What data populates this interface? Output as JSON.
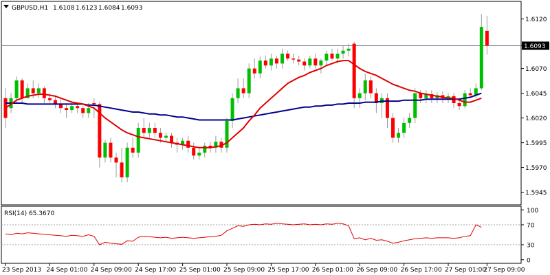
{
  "header": {
    "symbol": "GBPUSD,H1",
    "open": "1.6108",
    "high": "1.6123",
    "low": "1.6084",
    "close": "1.6093"
  },
  "colors": {
    "bull": "#00bf00",
    "bear": "#ff0000",
    "wick": "#9a9a9a",
    "ma_fast": "#e00000",
    "ma_slow": "#00008b",
    "rsi_line": "#e00000",
    "price_line": "#6e7e8e",
    "grid": "#a0a0a0",
    "label_bg": "#000000",
    "label_text": "#ffffff"
  },
  "chart_data": [
    {
      "type": "candlestick",
      "title": "GBPUSD,H1  1.6108 1.6123 1.6084 1.6093",
      "price_axis_ticks": [
        "1.6120",
        "1.6093",
        "1.6070",
        "1.6045",
        "1.6020",
        "1.5995",
        "1.5970",
        "1.5945"
      ],
      "ylim": [
        1.5935,
        1.6135
      ],
      "current_price": "1.6093",
      "x_labels": [
        {
          "i": 0,
          "text": "23 Sep 2013"
        },
        {
          "i": 8,
          "text": "24 Sep 01:00"
        },
        {
          "i": 16,
          "text": "24 Sep 09:00"
        },
        {
          "i": 24,
          "text": "24 Sep 17:00"
        },
        {
          "i": 32,
          "text": "25 Sep 01:00"
        },
        {
          "i": 40,
          "text": "25 Sep 09:00"
        },
        {
          "i": 48,
          "text": "25 Sep 17:00"
        },
        {
          "i": 56,
          "text": "26 Sep 01:00"
        },
        {
          "i": 64,
          "text": "26 Sep 09:00"
        },
        {
          "i": 72,
          "text": "26 Sep 17:00"
        },
        {
          "i": 80,
          "text": "27 Sep 01:00"
        },
        {
          "i": 87,
          "text": "27 Sep 09:00"
        }
      ],
      "candles": [
        [
          1.604,
          1.605,
          1.601,
          1.602
        ],
        [
          1.603,
          1.6045,
          1.6025,
          1.604
        ],
        [
          1.604,
          1.6062,
          1.6035,
          1.6058
        ],
        [
          1.6058,
          1.606,
          1.6035,
          1.604
        ],
        [
          1.604,
          1.6055,
          1.604,
          1.605
        ],
        [
          1.605,
          1.6058,
          1.604,
          1.6045
        ],
        [
          1.6045,
          1.6055,
          1.604,
          1.605
        ],
        [
          1.605,
          1.6052,
          1.6035,
          1.604
        ],
        [
          1.604,
          1.6045,
          1.6035,
          1.6038
        ],
        [
          1.6038,
          1.6042,
          1.603,
          1.6034
        ],
        [
          1.6034,
          1.604,
          1.6025,
          1.603
        ],
        [
          1.603,
          1.6035,
          1.602,
          1.6028
        ],
        [
          1.6028,
          1.6035,
          1.6025,
          1.6032
        ],
        [
          1.6032,
          1.6036,
          1.6025,
          1.603
        ],
        [
          1.603,
          1.6032,
          1.602,
          1.6025
        ],
        [
          1.6025,
          1.6035,
          1.602,
          1.603
        ],
        [
          1.6035,
          1.604,
          1.602,
          1.6034
        ],
        [
          1.6034,
          1.6036,
          1.597,
          1.598
        ],
        [
          1.598,
          1.5998,
          1.5975,
          1.5995
        ],
        [
          1.5995,
          1.6,
          1.5975,
          1.598
        ],
        [
          1.598,
          1.5985,
          1.596,
          1.5975
        ],
        [
          1.5975,
          1.599,
          1.5955,
          1.596
        ],
        [
          1.596,
          1.5995,
          1.5955,
          1.599
        ],
        [
          1.599,
          1.6,
          1.598,
          1.5985
        ],
        [
          1.5985,
          1.6015,
          1.598,
          1.601
        ],
        [
          1.601,
          1.602,
          1.6,
          1.6005
        ],
        [
          1.6005,
          1.6015,
          1.6,
          1.601
        ],
        [
          1.601,
          1.6015,
          1.6,
          1.6005
        ],
        [
          1.6005,
          1.601,
          1.5995,
          1.6
        ],
        [
          1.6,
          1.6005,
          1.5995,
          1.6002
        ],
        [
          1.6002,
          1.6005,
          1.599,
          1.5995
        ],
        [
          1.5995,
          1.6,
          1.5985,
          1.5993
        ],
        [
          1.5993,
          1.6,
          1.5988,
          1.5997
        ],
        [
          1.5997,
          1.6002,
          1.5985,
          1.599
        ],
        [
          1.599,
          1.5995,
          1.5978,
          1.5982
        ],
        [
          1.5982,
          1.599,
          1.5978,
          1.5985
        ],
        [
          1.5985,
          1.5995,
          1.598,
          1.5992
        ],
        [
          1.5992,
          1.5996,
          1.5985,
          1.599
        ],
        [
          1.599,
          1.6002,
          1.5985,
          1.5996
        ],
        [
          1.5996,
          1.6,
          1.5985,
          1.599
        ],
        [
          1.599,
          1.602,
          1.5985,
          1.6017
        ],
        [
          1.6017,
          1.6045,
          1.601,
          1.604
        ],
        [
          1.604,
          1.606,
          1.6035,
          1.605
        ],
        [
          1.605,
          1.606,
          1.604,
          1.6045
        ],
        [
          1.6045,
          1.6075,
          1.604,
          1.607
        ],
        [
          1.607,
          1.608,
          1.606,
          1.6065
        ],
        [
          1.6065,
          1.6082,
          1.606,
          1.6078
        ],
        [
          1.6078,
          1.6083,
          1.607,
          1.6073
        ],
        [
          1.6073,
          1.6085,
          1.6068,
          1.608
        ],
        [
          1.608,
          1.6083,
          1.607,
          1.6075
        ],
        [
          1.6075,
          1.609,
          1.607,
          1.6085
        ],
        [
          1.6085,
          1.6088,
          1.6078,
          1.608
        ],
        [
          1.608,
          1.6085,
          1.6075,
          1.6079
        ],
        [
          1.6079,
          1.6083,
          1.6073,
          1.6077
        ],
        [
          1.6077,
          1.608,
          1.6068,
          1.6073
        ],
        [
          1.6073,
          1.6083,
          1.607,
          1.608
        ],
        [
          1.608,
          1.6085,
          1.607,
          1.6073
        ],
        [
          1.6073,
          1.608,
          1.6065,
          1.6078
        ],
        [
          1.6078,
          1.6088,
          1.6073,
          1.6085
        ],
        [
          1.6085,
          1.609,
          1.6078,
          1.608
        ],
        [
          1.608,
          1.609,
          1.6075,
          1.6085
        ],
        [
          1.6085,
          1.6093,
          1.608,
          1.6088
        ],
        [
          1.6088,
          1.6095,
          1.6082,
          1.609
        ],
        [
          1.6095,
          1.6097,
          1.603,
          1.604
        ],
        [
          1.604,
          1.605,
          1.603,
          1.6045
        ],
        [
          1.6045,
          1.6065,
          1.6038,
          1.6058
        ],
        [
          1.6058,
          1.6062,
          1.604,
          1.6045
        ],
        [
          1.6045,
          1.605,
          1.6025,
          1.6035
        ],
        [
          1.6035,
          1.6045,
          1.602,
          1.604
        ],
        [
          1.604,
          1.6045,
          1.601,
          1.602
        ],
        [
          1.602,
          1.6025,
          1.5995,
          1.6
        ],
        [
          1.6,
          1.601,
          1.5995,
          1.6005
        ],
        [
          1.6005,
          1.602,
          1.6,
          1.6015
        ],
        [
          1.6015,
          1.6025,
          1.601,
          1.602
        ],
        [
          1.602,
          1.605,
          1.6015,
          1.6045
        ],
        [
          1.6045,
          1.6048,
          1.6035,
          1.604
        ],
        [
          1.604,
          1.6048,
          1.6035,
          1.6044
        ],
        [
          1.6044,
          1.6048,
          1.6035,
          1.604
        ],
        [
          1.604,
          1.6046,
          1.6035,
          1.6043
        ],
        [
          1.6043,
          1.6047,
          1.6035,
          1.604
        ],
        [
          1.604,
          1.6045,
          1.6035,
          1.6042
        ],
        [
          1.6042,
          1.6045,
          1.603,
          1.6035
        ],
        [
          1.6035,
          1.604,
          1.6028,
          1.6032
        ],
        [
          1.6032,
          1.6048,
          1.603,
          1.6045
        ],
        [
          1.6045,
          1.605,
          1.604,
          1.6043
        ],
        [
          1.6043,
          1.6055,
          1.604,
          1.605
        ],
        [
          1.605,
          1.6125,
          1.6048,
          1.6112
        ],
        [
          1.6108,
          1.6123,
          1.6084,
          1.6093
        ]
      ],
      "ma_fast": [
        1.603,
        1.6034,
        1.6038,
        1.604,
        1.6042,
        1.6043,
        1.6044,
        1.6044,
        1.6043,
        1.6042,
        1.604,
        1.6038,
        1.6036,
        1.6035,
        1.6034,
        1.6032,
        1.603,
        1.6025,
        1.602,
        1.6016,
        1.6012,
        1.6008,
        1.6005,
        1.6003,
        1.6001,
        1.6,
        1.5999,
        1.5998,
        1.5997,
        1.5996,
        1.5995,
        1.5994,
        1.5993,
        1.5992,
        1.5991,
        1.599,
        1.599,
        1.599,
        1.5991,
        1.5992,
        1.5995,
        1.6,
        1.6005,
        1.601,
        1.6017,
        1.6023,
        1.603,
        1.6035,
        1.604,
        1.6045,
        1.605,
        1.6055,
        1.6058,
        1.6061,
        1.6063,
        1.6066,
        1.6068,
        1.607,
        1.6073,
        1.6075,
        1.6077,
        1.6078,
        1.6078,
        1.6074,
        1.607,
        1.6067,
        1.6065,
        1.6063,
        1.606,
        1.6057,
        1.6054,
        1.6052,
        1.605,
        1.6048,
        1.6047,
        1.6045,
        1.6044,
        1.6043,
        1.6042,
        1.6041,
        1.604,
        1.604,
        1.6038,
        1.6036,
        1.6036,
        1.6038,
        1.604
      ],
      "ma_slow": [
        1.6035,
        1.6035,
        1.6035,
        1.6035,
        1.6034,
        1.6034,
        1.6034,
        1.6034,
        1.6034,
        1.6034,
        1.6034,
        1.6034,
        1.6034,
        1.6034,
        1.6034,
        1.6033,
        1.6033,
        1.6032,
        1.6031,
        1.603,
        1.6029,
        1.6028,
        1.6027,
        1.6026,
        1.6026,
        1.6025,
        1.6024,
        1.6024,
        1.6023,
        1.6023,
        1.6022,
        1.6021,
        1.6021,
        1.602,
        1.6019,
        1.6018,
        1.6018,
        1.6018,
        1.6018,
        1.6018,
        1.6018,
        1.6018,
        1.6019,
        1.602,
        1.6021,
        1.6022,
        1.6023,
        1.6024,
        1.6025,
        1.6026,
        1.6027,
        1.6028,
        1.6029,
        1.603,
        1.6031,
        1.6031,
        1.6032,
        1.6032,
        1.6033,
        1.6033,
        1.6034,
        1.6034,
        1.6035,
        1.6035,
        1.6035,
        1.6036,
        1.6036,
        1.6036,
        1.6037,
        1.6037,
        1.6037,
        1.6037,
        1.6038,
        1.6038,
        1.6038,
        1.6038,
        1.6039,
        1.6039,
        1.6039,
        1.6039,
        1.6039,
        1.6039,
        1.6039,
        1.604,
        1.6041,
        1.6043,
        1.6045
      ]
    },
    {
      "type": "line",
      "title": "RSI(14) 65.3670",
      "axis_ticks": [
        "100",
        "70",
        "30",
        "0"
      ],
      "levels": [
        70,
        30
      ],
      "ylim": [
        0,
        100
      ],
      "values": [
        52,
        50,
        53,
        52,
        54,
        53,
        52,
        51,
        50,
        49,
        48,
        47,
        49,
        48,
        47,
        50,
        47,
        30,
        35,
        33,
        32,
        31,
        38,
        37,
        45,
        47,
        46,
        45,
        44,
        45,
        43,
        44,
        45,
        44,
        43,
        44,
        45,
        46,
        47,
        49,
        58,
        63,
        68,
        67,
        70,
        71,
        70,
        72,
        71,
        73,
        72,
        71,
        70,
        71,
        72,
        70,
        71,
        70,
        72,
        71,
        73,
        72,
        68,
        42,
        44,
        40,
        43,
        39,
        40,
        37,
        33,
        35,
        38,
        40,
        42,
        43,
        44,
        43,
        44,
        44,
        44,
        43,
        44,
        47,
        48,
        70,
        65
      ]
    }
  ]
}
